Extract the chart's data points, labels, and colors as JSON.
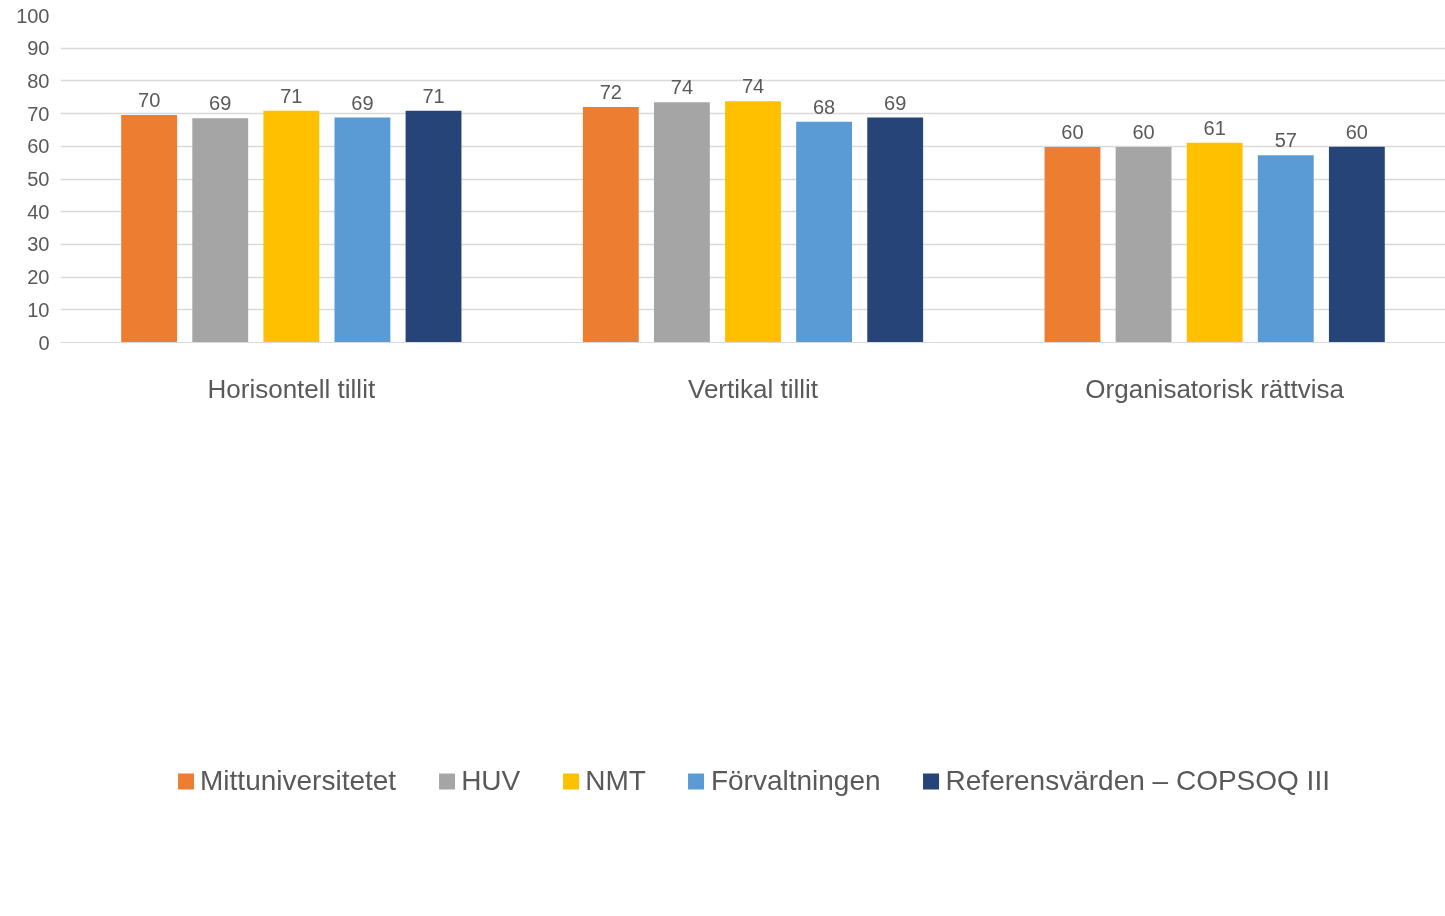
{
  "chart_data": {
    "type": "bar",
    "categories": [
      "Horisontell tillit",
      "Vertikal tillit",
      "Organisatorisk rättvisa"
    ],
    "series": [
      {
        "name": "Mittuniversitetet",
        "color": "#ed7d31",
        "values": [
          69.6,
          72.0,
          59.8
        ],
        "value_labels": [
          "70",
          "72",
          "60"
        ]
      },
      {
        "name": "HUV",
        "color": "#a5a5a5",
        "values": [
          68.6,
          73.5,
          59.8
        ],
        "value_labels": [
          "69",
          "74",
          "60"
        ]
      },
      {
        "name": "NMT",
        "color": "#ffc000",
        "values": [
          70.9,
          73.8,
          61.1
        ],
        "value_labels": [
          "71",
          "74",
          "61"
        ]
      },
      {
        "name": "Förvaltningen",
        "color": "#5b9bd5",
        "values": [
          68.8,
          67.5,
          57.3
        ],
        "value_labels": [
          "69",
          "68",
          "57"
        ]
      },
      {
        "name": "Referensvärden – COPSOQ III",
        "color": "#264478",
        "values": [
          70.9,
          68.8,
          59.9
        ],
        "value_labels": [
          "71",
          "69",
          "60"
        ]
      }
    ],
    "ylim": [
      0,
      100
    ],
    "yticks": [
      0,
      10,
      20,
      30,
      40,
      50,
      60,
      70,
      80,
      90,
      100
    ],
    "grid": "y",
    "legend": "bottom"
  }
}
